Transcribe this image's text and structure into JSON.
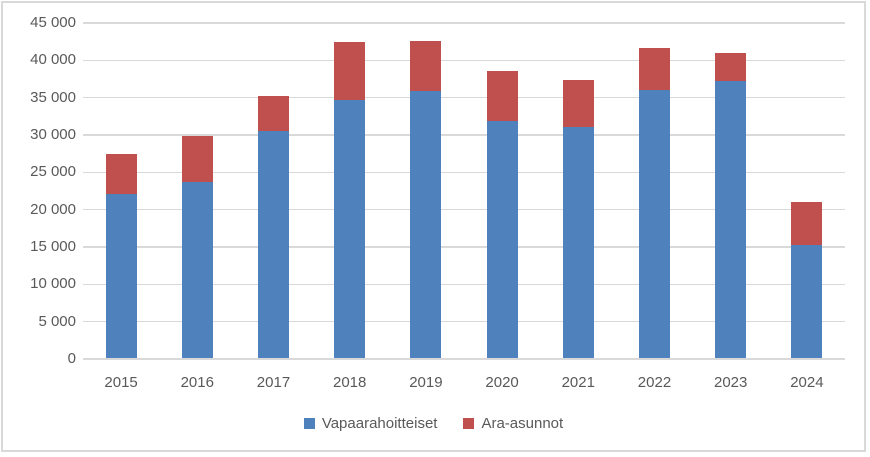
{
  "chart_data": {
    "type": "bar",
    "stacked": true,
    "title": "",
    "xlabel": "",
    "ylabel": "",
    "categories": [
      "2015",
      "2016",
      "2017",
      "2018",
      "2019",
      "2020",
      "2021",
      "2022",
      "2023",
      "2024"
    ],
    "series": [
      {
        "name": "Vapaarahoitteiset",
        "color": "#4F81BD",
        "values": [
          22000,
          23600,
          30400,
          34500,
          35800,
          31800,
          31000,
          35900,
          37100,
          15200
        ]
      },
      {
        "name": "Ara-asunnot",
        "color": "#C0504D",
        "values": [
          5300,
          6200,
          4700,
          7800,
          6700,
          6700,
          6200,
          5600,
          3700,
          5700
        ]
      }
    ],
    "ylim": [
      0,
      45000
    ],
    "ytick_interval": 5000,
    "ytick_labels": [
      "0",
      "5 000",
      "10 000",
      "15 000",
      "20 000",
      "25 000",
      "30 000",
      "35 000",
      "40 000",
      "45 000"
    ],
    "grid": true,
    "legend_position": "bottom"
  },
  "colors": {
    "series_blue": "#4F81BD",
    "series_red": "#C0504D",
    "gridline": "#D9D9D9",
    "axis_line": "#D9D9D9",
    "frame_border": "#D9D9D9",
    "label_text": "#595959",
    "background": "#FFFFFF"
  }
}
